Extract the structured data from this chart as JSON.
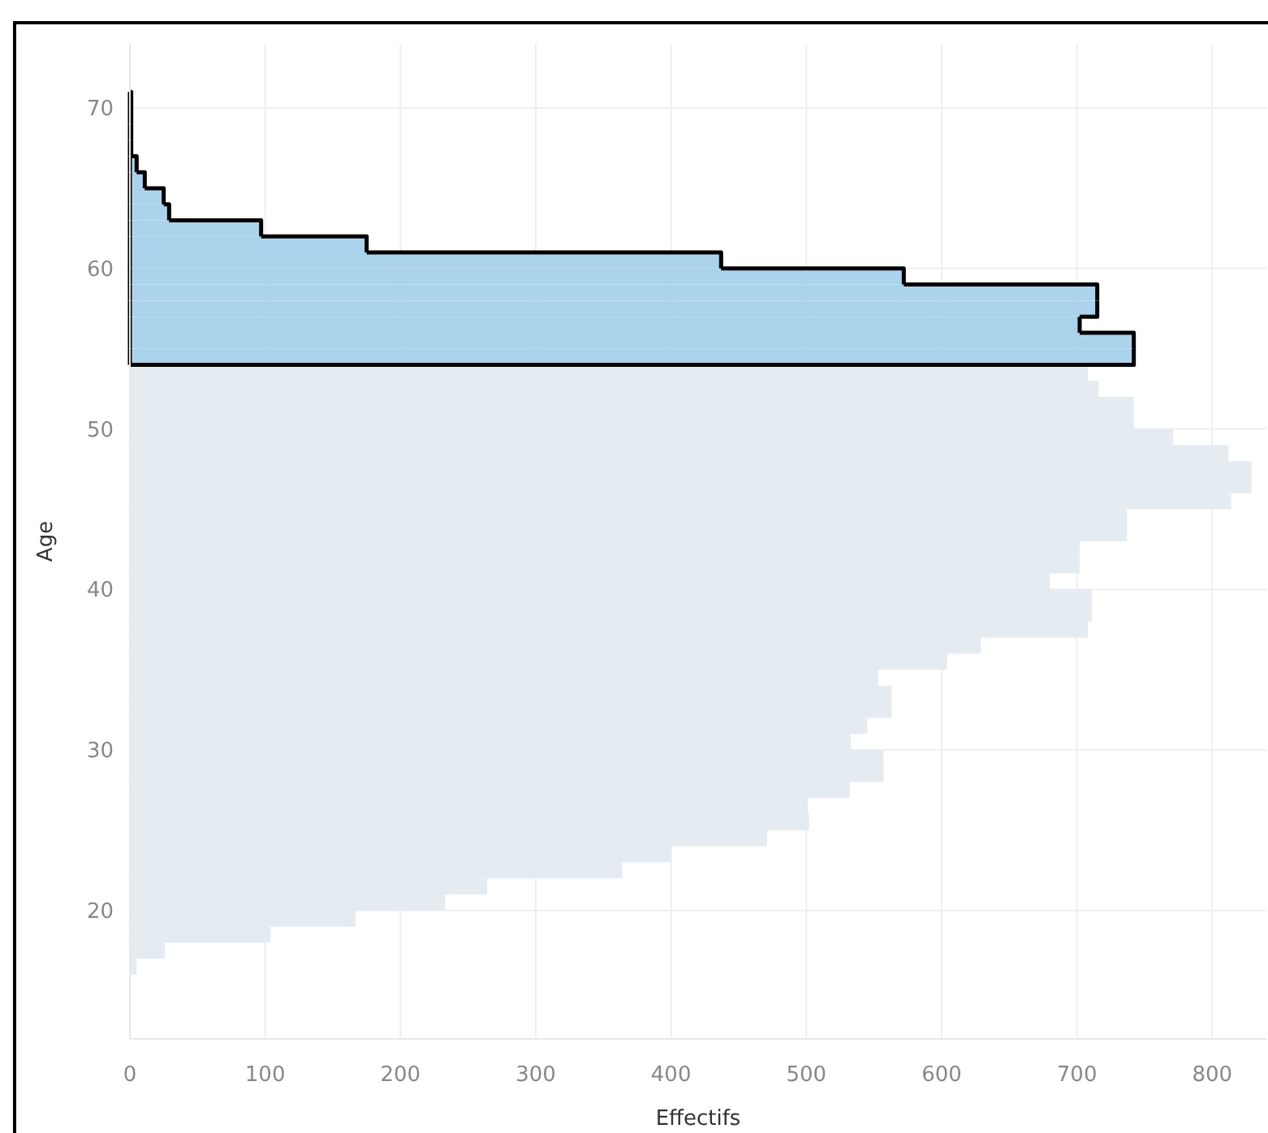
{
  "chart_data": {
    "type": "histogram",
    "orientation": "horizontal",
    "xlabel": "Effectifs",
    "ylabel": "Age",
    "bins": [
      16,
      17,
      18,
      19,
      20,
      21,
      22,
      23,
      24,
      25,
      26,
      27,
      28,
      29,
      30,
      31,
      32,
      33,
      34,
      35,
      36,
      37,
      38,
      39,
      40,
      41,
      42,
      43,
      44,
      45,
      46,
      47,
      48,
      49,
      50,
      51,
      52,
      53,
      54,
      55,
      56,
      57,
      58,
      59,
      60,
      61,
      62,
      63,
      64,
      65,
      66,
      67,
      68,
      69,
      70,
      71
    ],
    "series": [
      {
        "color": "#e4ebf1",
        "values": [
          5,
          26,
          104,
          167,
          233,
          264,
          364,
          400,
          471,
          502,
          501,
          532,
          557,
          557,
          533,
          545,
          563,
          563,
          553,
          604,
          629,
          708,
          711,
          711,
          680,
          702,
          702,
          737,
          737,
          814,
          829,
          829,
          812,
          771,
          742,
          742,
          716,
          708,
          null,
          null,
          null,
          null,
          null,
          null,
          null,
          null,
          null,
          null,
          null,
          null,
          null,
          null,
          null,
          null,
          null
        ]
      },
      {
        "color": "#acd3ec",
        "line_style": "solid",
        "values": [
          null,
          null,
          null,
          null,
          null,
          null,
          null,
          null,
          null,
          null,
          null,
          null,
          null,
          null,
          null,
          null,
          null,
          null,
          null,
          null,
          null,
          null,
          null,
          null,
          null,
          null,
          null,
          null,
          null,
          null,
          null,
          null,
          null,
          null,
          null,
          null,
          null,
          null,
          742,
          742,
          702,
          715,
          715,
          572,
          437,
          175,
          97,
          29,
          25,
          11,
          5,
          1,
          1,
          1,
          1
        ]
      }
    ],
    "xlim": [
      0,
      840
    ],
    "xticks": [
      0,
      100,
      200,
      300,
      400,
      500,
      600,
      700,
      800
    ],
    "ylim": [
      12,
      74
    ],
    "yticks": [
      20,
      30,
      40,
      50,
      60,
      70
    ],
    "grid": true
  }
}
